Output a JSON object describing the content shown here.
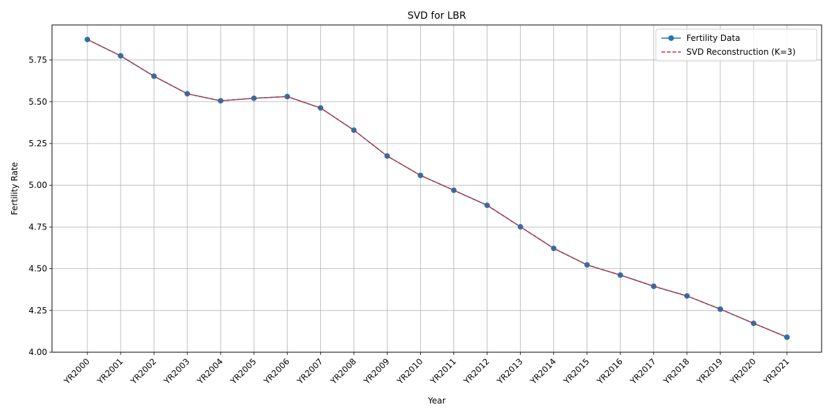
{
  "chart_data": {
    "type": "line",
    "title": "SVD for LBR",
    "xlabel": "Year",
    "ylabel": "Fertility Rate",
    "categories": [
      "YR2000",
      "YR2001",
      "YR2002",
      "YR2003",
      "YR2004",
      "YR2005",
      "YR2006",
      "YR2007",
      "YR2008",
      "YR2009",
      "YR2010",
      "YR2011",
      "YR2012",
      "YR2013",
      "YR2014",
      "YR2015",
      "YR2016",
      "YR2017",
      "YR2018",
      "YR2019",
      "YR2020",
      "YR2021"
    ],
    "ylim": [
      4.0,
      5.96
    ],
    "yticks": [
      4.0,
      4.25,
      4.5,
      4.75,
      5.0,
      5.25,
      5.5,
      5.75
    ],
    "ytick_labels": [
      "4.00",
      "4.25",
      "4.50",
      "4.75",
      "5.00",
      "5.25",
      "5.50",
      "5.75"
    ],
    "grid": true,
    "legend_position": "top-right",
    "series": [
      {
        "name": "Fertility Data",
        "color": "#1f77b4",
        "style": "solid-with-circle-markers",
        "values": [
          5.873,
          5.775,
          5.653,
          5.548,
          5.506,
          5.521,
          5.531,
          5.463,
          5.33,
          5.175,
          5.059,
          4.97,
          4.88,
          4.751,
          4.622,
          4.523,
          4.462,
          4.395,
          4.337,
          4.258,
          4.173,
          4.09
        ]
      },
      {
        "name": "SVD Reconstruction (K=3)",
        "color": "#d62728",
        "style": "dashed",
        "values": [
          5.873,
          5.775,
          5.653,
          5.548,
          5.506,
          5.521,
          5.531,
          5.463,
          5.33,
          5.175,
          5.059,
          4.97,
          4.88,
          4.751,
          4.622,
          4.523,
          4.462,
          4.395,
          4.337,
          4.258,
          4.173,
          4.09
        ]
      }
    ]
  }
}
